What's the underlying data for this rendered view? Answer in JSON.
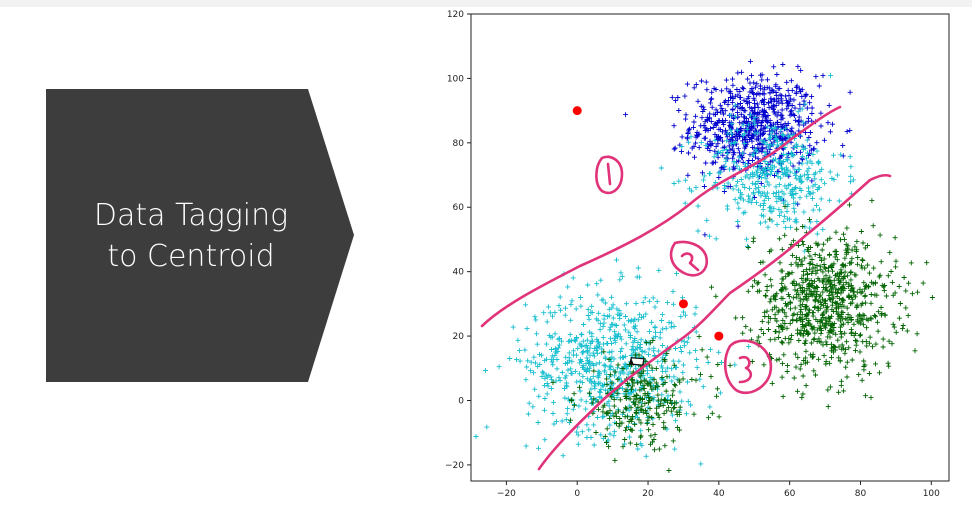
{
  "slide": {
    "title_line1": "Data Tagging",
    "title_line2": "to Centroid"
  },
  "colors": {
    "slide_shape": "#3d3d3d",
    "cluster_blue": "#0000cd",
    "cluster_cyan": "#17becf",
    "cluster_green": "#006400",
    "centroid": "#ff0000",
    "annotation": "#e0337a"
  },
  "chart_data": {
    "type": "scatter",
    "marker": "plus",
    "xlim": [
      -30,
      105
    ],
    "ylim": [
      -25,
      120
    ],
    "xticks": [
      "−20",
      "0",
      "20",
      "40",
      "60",
      "80",
      "100"
    ],
    "yticks": [
      "−20",
      "0",
      "20",
      "40",
      "60",
      "80",
      "100",
      "120"
    ],
    "grid": false,
    "series": [
      {
        "color": "#0000cd",
        "center": [
          50,
          85
        ],
        "spread": [
          9,
          8
        ],
        "count": 700
      },
      {
        "color": "#17becf",
        "center": [
          55,
          70
        ],
        "spread": [
          10,
          9
        ],
        "count": 400
      },
      {
        "color": "#17becf",
        "center": [
          10,
          12
        ],
        "spread": [
          12,
          11
        ],
        "count": 700
      },
      {
        "color": "#006400",
        "center": [
          70,
          30
        ],
        "spread": [
          10,
          11
        ],
        "count": 800
      },
      {
        "color": "#006400",
        "center": [
          18,
          0
        ],
        "spread": [
          9,
          7
        ],
        "count": 250
      }
    ],
    "centroids": [
      [
        0,
        90
      ],
      [
        30,
        30
      ],
      [
        40,
        20
      ]
    ],
    "annotations": [
      "1",
      "2",
      "3"
    ]
  }
}
